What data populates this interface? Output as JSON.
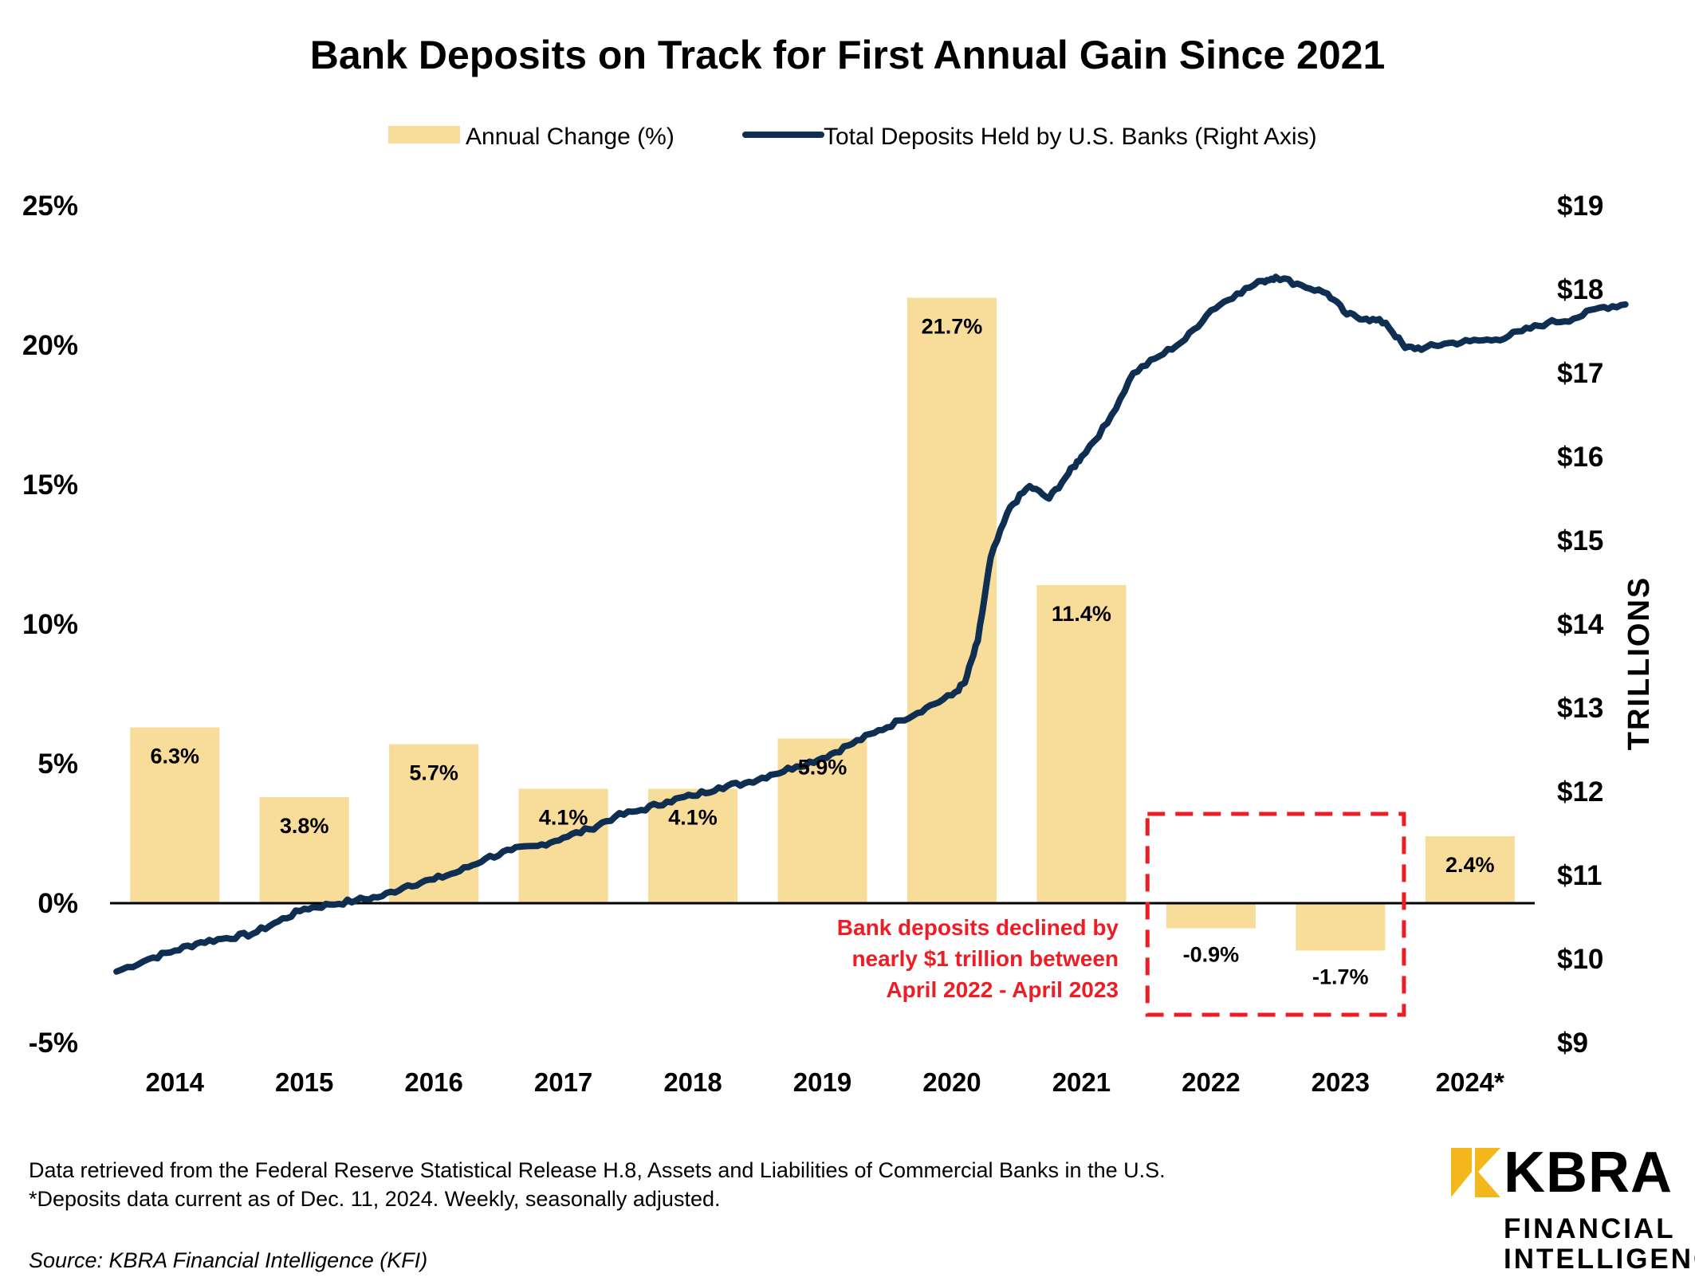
{
  "chart_data": {
    "type": "bar+line",
    "title": "Bank Deposits on Track for First Annual Gain Since 2021",
    "legend": {
      "position": "top-center",
      "bar_label": "Annual Change (%)",
      "line_label": "Total Deposits Held by U.S. Banks (Right Axis)"
    },
    "categories": [
      "2014",
      "2015",
      "2016",
      "2017",
      "2018",
      "2019",
      "2020",
      "2021",
      "2022",
      "2023",
      "2024*"
    ],
    "bars": {
      "name": "Annual Change (%)",
      "values": [
        6.3,
        3.8,
        5.7,
        4.1,
        4.1,
        5.9,
        21.7,
        11.4,
        -0.9,
        -1.7,
        2.4
      ],
      "labels": [
        "6.3%",
        "3.8%",
        "5.7%",
        "4.1%",
        "4.1%",
        "5.9%",
        "21.7%",
        "11.4%",
        "-0.9%",
        "-1.7%",
        "2.4%"
      ]
    },
    "line": {
      "name": "Total Deposits Held by U.S. Banks (Right Axis)",
      "unit": "trillions USD",
      "points": [
        [
          2013.55,
          9.85
        ],
        [
          2013.8,
          10.0
        ],
        [
          2014.0,
          10.1
        ],
        [
          2014.2,
          10.2
        ],
        [
          2014.4,
          10.25
        ],
        [
          2014.6,
          10.3
        ],
        [
          2014.8,
          10.45
        ],
        [
          2015.0,
          10.6
        ],
        [
          2015.2,
          10.65
        ],
        [
          2015.4,
          10.7
        ],
        [
          2015.6,
          10.75
        ],
        [
          2015.8,
          10.88
        ],
        [
          2016.0,
          10.95
        ],
        [
          2016.2,
          11.05
        ],
        [
          2016.4,
          11.2
        ],
        [
          2016.6,
          11.3
        ],
        [
          2016.8,
          11.35
        ],
        [
          2017.0,
          11.45
        ],
        [
          2017.2,
          11.55
        ],
        [
          2017.4,
          11.7
        ],
        [
          2017.6,
          11.78
        ],
        [
          2017.8,
          11.88
        ],
        [
          2018.0,
          11.95
        ],
        [
          2018.2,
          12.05
        ],
        [
          2018.4,
          12.1
        ],
        [
          2018.6,
          12.2
        ],
        [
          2018.8,
          12.3
        ],
        [
          2019.0,
          12.4
        ],
        [
          2019.2,
          12.55
        ],
        [
          2019.4,
          12.7
        ],
        [
          2019.6,
          12.85
        ],
        [
          2019.8,
          13.0
        ],
        [
          2020.0,
          13.15
        ],
        [
          2020.1,
          13.3
        ],
        [
          2020.2,
          13.8
        ],
        [
          2020.3,
          14.8
        ],
        [
          2020.45,
          15.4
        ],
        [
          2020.6,
          15.65
        ],
        [
          2020.75,
          15.5
        ],
        [
          2020.9,
          15.8
        ],
        [
          2021.0,
          16.0
        ],
        [
          2021.2,
          16.4
        ],
        [
          2021.4,
          17.0
        ],
        [
          2021.6,
          17.2
        ],
        [
          2021.8,
          17.4
        ],
        [
          2022.0,
          17.75
        ],
        [
          2022.2,
          17.95
        ],
        [
          2022.4,
          18.1
        ],
        [
          2022.5,
          18.15
        ],
        [
          2022.7,
          18.05
        ],
        [
          2022.9,
          17.95
        ],
        [
          2023.05,
          17.7
        ],
        [
          2023.2,
          17.65
        ],
        [
          2023.35,
          17.6
        ],
        [
          2023.5,
          17.3
        ],
        [
          2023.65,
          17.3
        ],
        [
          2023.8,
          17.35
        ],
        [
          2024.0,
          17.38
        ],
        [
          2024.2,
          17.4
        ],
        [
          2024.4,
          17.5
        ],
        [
          2024.6,
          17.6
        ],
        [
          2024.8,
          17.65
        ],
        [
          2025.0,
          17.78
        ],
        [
          2025.2,
          17.82
        ]
      ]
    },
    "left_axis": {
      "min": -5,
      "max": 25,
      "step": 5,
      "tick_labels": [
        "-5%",
        "0%",
        "5%",
        "10%",
        "15%",
        "20%",
        "25%"
      ]
    },
    "right_axis": {
      "label": "TRILLIONS",
      "min": 9,
      "max": 19,
      "step": 1,
      "tick_labels": [
        "$9",
        "$10",
        "$11",
        "$12",
        "$13",
        "$14",
        "$15",
        "$16",
        "$17",
        "$18",
        "$19"
      ]
    },
    "annotation": {
      "lines": [
        "Bank deposits declined by",
        "nearly $1 trillion between",
        "April 2022 - April 2023"
      ],
      "highlight_categories": [
        "2022",
        "2023"
      ]
    },
    "grid": false,
    "colors": {
      "bar": "#f8dc9a",
      "line": "#0f2f52",
      "annotation": "#ee1c24",
      "zero_line": "#000000",
      "logo_accent": "#f4b81c"
    }
  },
  "footer": {
    "note_line1": "Data retrieved from the Federal Reserve Statistical Release H.8, Assets and Liabilities of Commercial Banks in the U.S.",
    "note_line2": "*Deposits data current as of Dec. 11, 2024. Weekly, seasonally adjusted.",
    "source": "Source: KBRA Financial Intelligence (KFI)"
  },
  "logo": {
    "wordmark": "KBRA",
    "sub_line1": "FINANCIAL",
    "sub_line2": "INTELLIGENCE"
  }
}
